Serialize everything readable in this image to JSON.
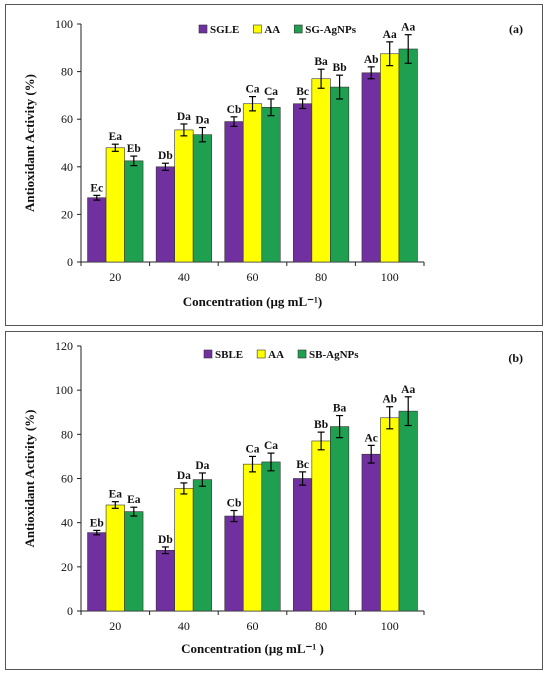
{
  "chart_data": [
    {
      "type": "bar",
      "panel_tag": "(a)",
      "xlabel": "Concentration  (μg mL⁻¹)",
      "ylabel": "Antioxidant Activity (%)",
      "ylim": [
        0,
        100
      ],
      "yticks": [
        0,
        20,
        40,
        60,
        80,
        100
      ],
      "categories": [
        "20",
        "40",
        "60",
        "80",
        "100"
      ],
      "legend_position": "top-center",
      "grid": false,
      "series": [
        {
          "name": "SGLE",
          "color": "#7030A0",
          "values": [
            27,
            40,
            59,
            66.5,
            79.5
          ],
          "errors": [
            1,
            1.5,
            2,
            2,
            2.5
          ],
          "labels": [
            "Ec",
            "Db",
            "Cb",
            "Bc",
            "Ab"
          ]
        },
        {
          "name": "AA",
          "color": "#FFFF00",
          "values": [
            48,
            55.5,
            66.5,
            77,
            87.5
          ],
          "errors": [
            1.5,
            2.5,
            3,
            4,
            5
          ],
          "labels": [
            "Ea",
            "Da",
            "Ca",
            "Ba",
            "Aa"
          ]
        },
        {
          "name": "SG-AgNPs",
          "color": "#1FA050",
          "values": [
            42.5,
            53.5,
            65,
            73.5,
            89.5
          ],
          "errors": [
            2,
            3,
            3.5,
            5,
            6
          ],
          "labels": [
            "Eb",
            "Da",
            "Ca",
            "Bb",
            "Aa"
          ]
        }
      ]
    },
    {
      "type": "bar",
      "panel_tag": "(b)",
      "xlabel": "Concentration  (μg mL⁻¹ )",
      "ylabel": "Antioxidant Activity (%)",
      "ylim": [
        0,
        120
      ],
      "yticks": [
        0,
        20,
        40,
        60,
        80,
        100,
        120
      ],
      "categories": [
        "20",
        "40",
        "60",
        "80",
        "100"
      ],
      "legend_position": "top-center",
      "grid": false,
      "series": [
        {
          "name": "SBLE",
          "color": "#7030A0",
          "values": [
            35.5,
            27.5,
            43,
            60,
            71
          ],
          "errors": [
            1,
            1.5,
            2.5,
            3,
            4
          ],
          "labels": [
            "Eb",
            "Db",
            "Cb",
            "Bc",
            "Ac"
          ]
        },
        {
          "name": "AA",
          "color": "#FFFF00",
          "values": [
            48,
            55.5,
            66.5,
            77,
            87.5
          ],
          "errors": [
            1.5,
            2.5,
            3.5,
            4,
            5
          ],
          "labels": [
            "Ea",
            "Da",
            "Ca",
            "Bb",
            "Ab"
          ]
        },
        {
          "name": "SB-AgNPs",
          "color": "#1FA050",
          "values": [
            45,
            59.5,
            67.5,
            83.5,
            90.5
          ],
          "errors": [
            2,
            3,
            4,
            5,
            6.5
          ],
          "labels": [
            "Ea",
            "Da",
            "Ca",
            "Ba",
            "Aa"
          ]
        }
      ]
    }
  ]
}
